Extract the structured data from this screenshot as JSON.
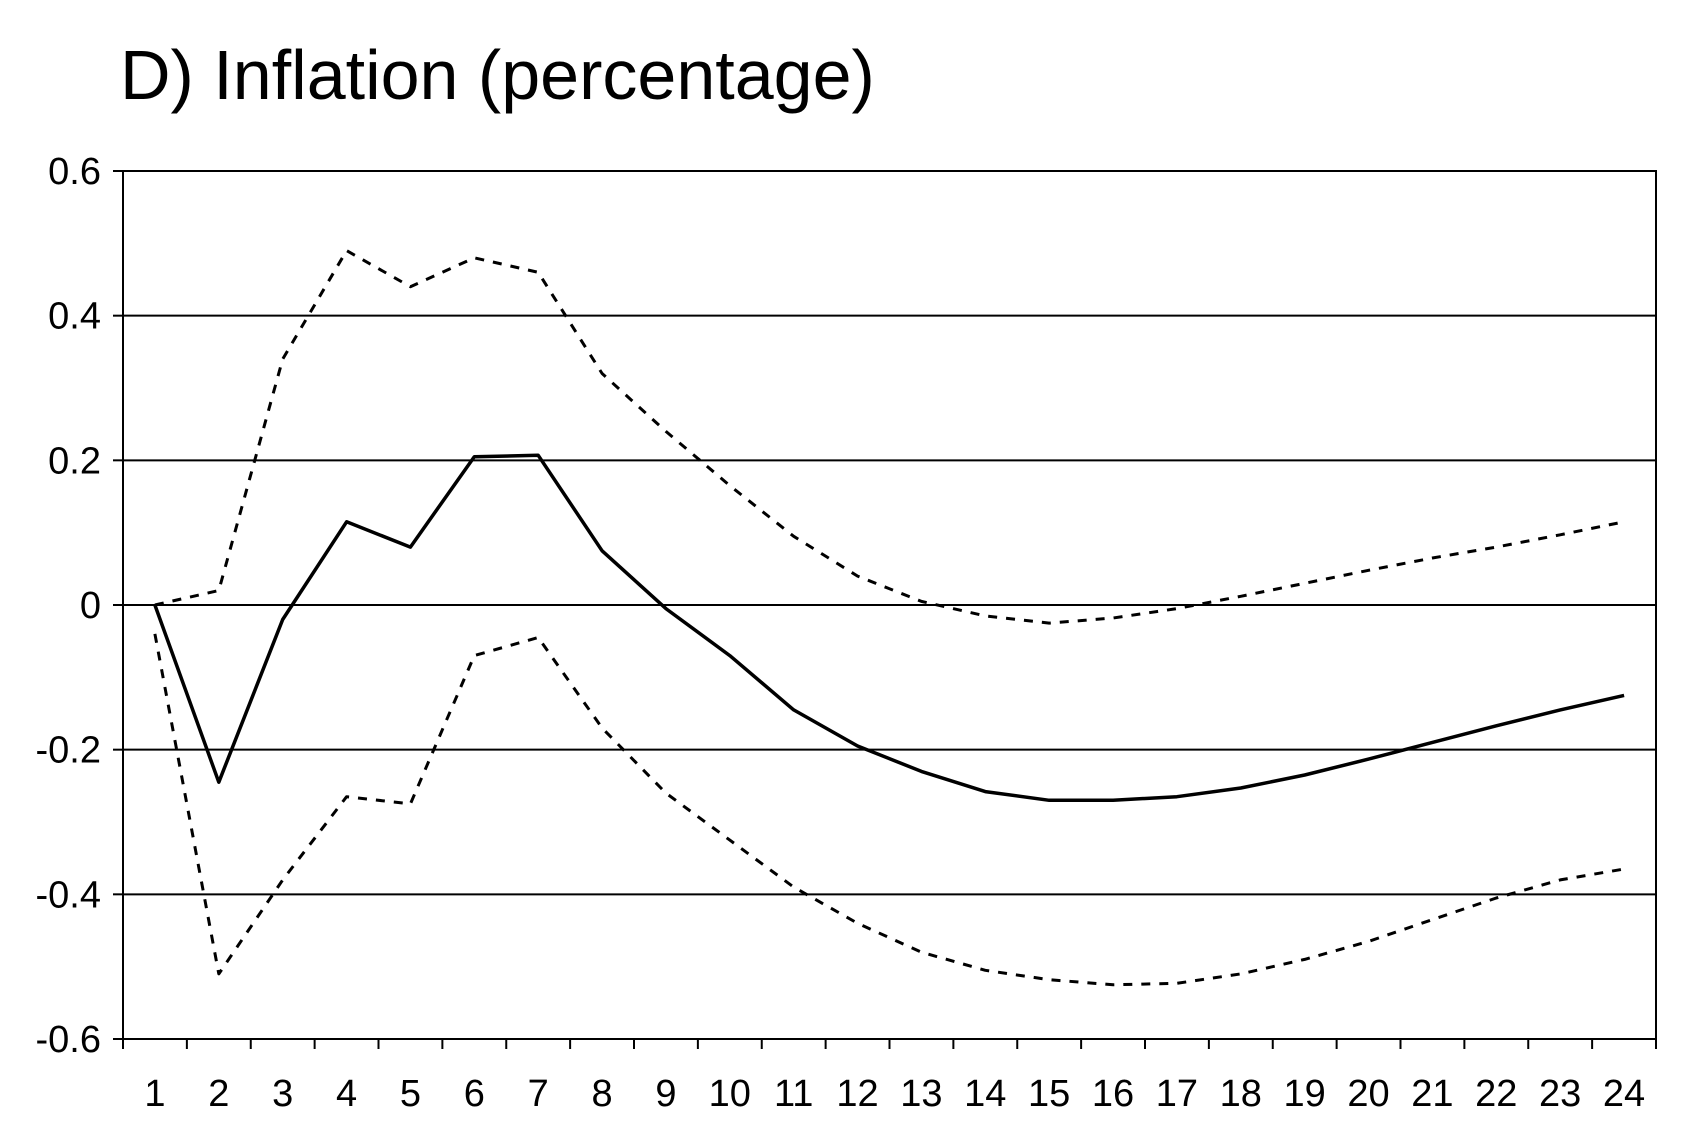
{
  "chart_data": {
    "type": "line",
    "title": "D) Inflation (percentage)",
    "xlabel": "",
    "ylabel": "",
    "x": [
      1,
      2,
      3,
      4,
      5,
      6,
      7,
      8,
      9,
      10,
      11,
      12,
      13,
      14,
      15,
      16,
      17,
      18,
      19,
      20,
      21,
      22,
      23,
      24
    ],
    "ylim": [
      -0.6,
      0.6
    ],
    "yticks": [
      -0.6,
      -0.4,
      -0.2,
      0,
      0.2,
      0.4,
      0.6
    ],
    "ytick_labels": [
      "-0.6",
      "-0.4",
      "-0.2",
      "0",
      "0.2",
      "0.4",
      "0.6"
    ],
    "grid": "horizontal",
    "legend": "none",
    "series": [
      {
        "style": "solid",
        "color": "#000000",
        "values": [
          0,
          -0.245,
          -0.02,
          0.115,
          0.08,
          0.205,
          0.207,
          0.075,
          -0.005,
          -0.07,
          -0.145,
          -0.195,
          -0.23,
          -0.258,
          -0.27,
          -0.27,
          -0.265,
          -0.253,
          -0.235,
          -0.213,
          -0.19,
          -0.167,
          -0.145,
          -0.125
        ]
      },
      {
        "style": "dotted",
        "color": "#000000",
        "values": [
          0,
          0.02,
          0.34,
          0.49,
          0.44,
          0.48,
          0.46,
          0.32,
          0.24,
          0.165,
          0.095,
          0.04,
          0.005,
          -0.015,
          -0.025,
          -0.018,
          -0.005,
          0.012,
          0.03,
          0.048,
          0.065,
          0.08,
          0.097,
          0.115
        ]
      },
      {
        "style": "dotted",
        "color": "#000000",
        "values": [
          -0.04,
          -0.51,
          -0.38,
          -0.265,
          -0.275,
          -0.07,
          -0.045,
          -0.17,
          -0.26,
          -0.325,
          -0.39,
          -0.44,
          -0.48,
          -0.505,
          -0.518,
          -0.525,
          -0.523,
          -0.51,
          -0.49,
          -0.465,
          -0.435,
          -0.405,
          -0.38,
          -0.365
        ]
      }
    ]
  }
}
